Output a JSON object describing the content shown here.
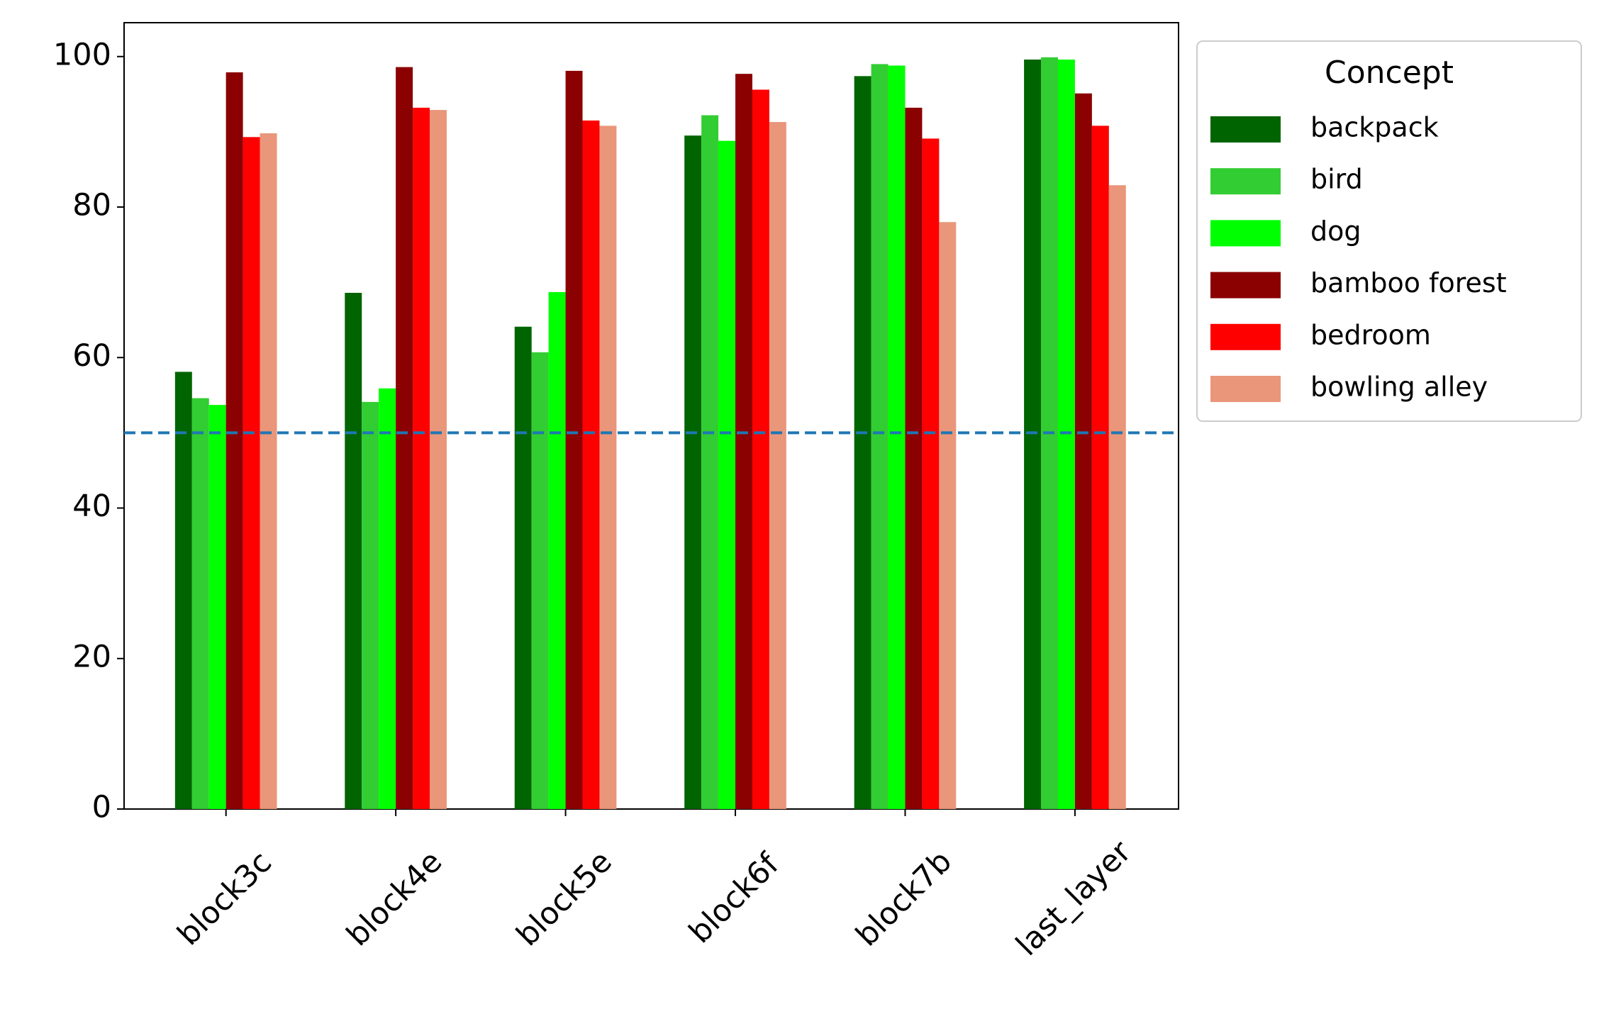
{
  "chart_data": {
    "type": "bar",
    "categories": [
      "block3c",
      "block4e",
      "block5e",
      "block6f",
      "block7b",
      "last_layer"
    ],
    "series": [
      {
        "name": "backpack",
        "color": "#006400",
        "values": [
          58.1,
          68.6,
          64.1,
          89.5,
          97.4,
          99.6
        ]
      },
      {
        "name": "bird",
        "color": "#32cd32",
        "values": [
          54.6,
          54.1,
          60.7,
          92.2,
          99.0,
          99.9
        ]
      },
      {
        "name": "dog",
        "color": "#00ff00",
        "values": [
          53.7,
          55.9,
          68.7,
          88.8,
          98.8,
          99.6
        ]
      },
      {
        "name": "bamboo forest",
        "color": "#8b0000",
        "values": [
          97.9,
          98.6,
          98.1,
          97.7,
          93.2,
          95.1
        ]
      },
      {
        "name": "bedroom",
        "color": "#ff0000",
        "values": [
          89.3,
          93.2,
          91.5,
          95.6,
          89.1,
          90.8
        ]
      },
      {
        "name": "bowling alley",
        "color": "#e9967a",
        "values": [
          89.8,
          92.9,
          90.8,
          91.3,
          78.0,
          82.9
        ]
      }
    ],
    "ylim": [
      0,
      104.5
    ],
    "yticks": [
      0,
      20,
      40,
      60,
      80,
      100
    ],
    "reference_line": {
      "value": 50,
      "color": "#1f77b4",
      "style": "dashed"
    },
    "legend": {
      "title": "Concept",
      "position": "outside-upper-right"
    },
    "grid": false
  }
}
